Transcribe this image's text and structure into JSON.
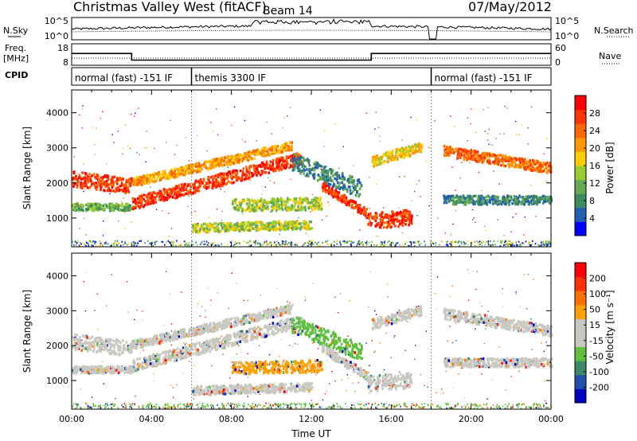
{
  "header": {
    "station": "Christmas Valley West (fitACF)",
    "beam": "Beam 14",
    "date": "07/May/2012"
  },
  "side_labels": {
    "nsky": "N.Sky",
    "freq": "Freq.",
    "freq_unit": "[MHz]",
    "cpid": "CPID",
    "nsearch": "N.Search",
    "nave": "Nave"
  },
  "colors": {
    "frame": "#000000",
    "power_scale": [
      "#0000ff",
      "#2060b0",
      "#3c8c60",
      "#66aa55",
      "#9acd32",
      "#ffcc00",
      "#ff9900",
      "#ff6600",
      "#ff3300",
      "#ff0000"
    ],
    "velocity_scale": [
      "#0000c0",
      "#2050b0",
      "#3a8a6a",
      "#5fbf3f",
      "#c8c8c0",
      "#c8c8c0",
      "#ffa000",
      "#ff7000",
      "#ff3000",
      "#ff0000"
    ]
  },
  "chart_data": [
    {
      "type": "line",
      "name": "noise-panel",
      "y_ticks_left": [
        "10^5",
        "10^0"
      ],
      "y_ticks_right": [
        "10^5",
        "10^0"
      ]
    },
    {
      "type": "line",
      "name": "frequency-nave-panel",
      "y_ticks_left": [
        "18",
        "8"
      ],
      "y_ticks_right": [
        "60",
        "0"
      ],
      "freq_segments_x_hours": [
        [
          0.0,
          3.0
        ],
        [
          3.0,
          15.0
        ],
        [
          15.0,
          18.0
        ],
        [
          18.0,
          24.0
        ]
      ],
      "freq_values": [
        13.5,
        10.4,
        13.5,
        13.5
      ]
    },
    {
      "type": "table",
      "name": "cpid-panel",
      "segments": [
        {
          "label": "normal (fast) -151 IF",
          "start_hour": 0.0,
          "end_hour": 6.0
        },
        {
          "label": "themis 3300 IF",
          "start_hour": 6.0,
          "end_hour": 18.0
        },
        {
          "label": "normal (fast) -151 IF",
          "start_hour": 18.0,
          "end_hour": 24.0
        }
      ]
    },
    {
      "type": "heatmap",
      "name": "power-panel",
      "ylabel": "Slant Range [km]",
      "y_ticks": [
        "4000",
        "3000",
        "2000",
        "1000"
      ],
      "y_tick_values": [
        4000,
        3000,
        2000,
        1000
      ],
      "ylim": [
        180,
        4650
      ],
      "xlim_hours": [
        0,
        24
      ],
      "colorbar": {
        "label": "Power [dB]",
        "ticks": [
          "28",
          "24",
          "20",
          "16",
          "12",
          "8",
          "4"
        ],
        "range": [
          0,
          30
        ]
      }
    },
    {
      "type": "heatmap",
      "name": "velocity-panel",
      "ylabel": "Slant Range [km]",
      "xlabel": "Time UT",
      "x_ticks": [
        "00:00",
        "04:00",
        "08:00",
        "12:00",
        "16:00",
        "20:00",
        "00:00"
      ],
      "x_tick_hours": [
        0,
        4,
        8,
        12,
        16,
        20,
        24
      ],
      "y_ticks": [
        "4000",
        "3000",
        "2000",
        "1000"
      ],
      "y_tick_values": [
        4000,
        3000,
        2000,
        1000
      ],
      "ylim": [
        180,
        4650
      ],
      "xlim_hours": [
        0,
        24
      ],
      "colorbar": {
        "label": "Velocity [m s⁻¹]",
        "ticks": [
          "200",
          "100",
          "50",
          "15",
          "-15",
          "-50",
          "-100",
          "-200"
        ],
        "range": [
          -250,
          250
        ]
      }
    }
  ]
}
